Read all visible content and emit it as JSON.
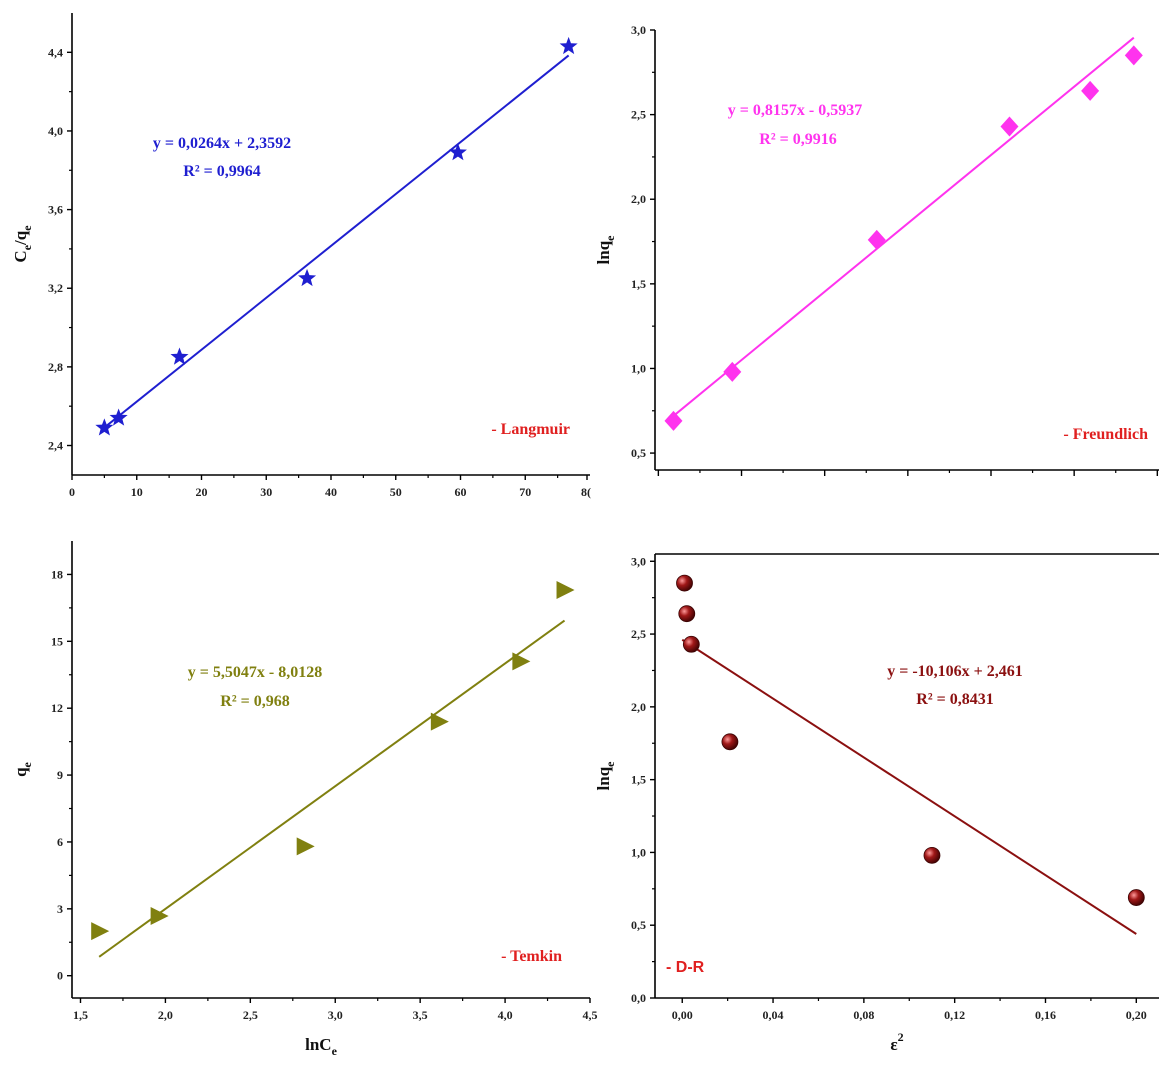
{
  "chart_data": [
    {
      "type": "scatter",
      "panel": "langmuir",
      "title": "",
      "xlabel": "",
      "ylabel_main": "C",
      "ylabel_sub1": "e",
      "ylabel_mid": "/q",
      "ylabel_sub2": "e",
      "xlim": [
        0,
        80
      ],
      "ylim": [
        2.25,
        4.6
      ],
      "x_ticks": [
        0,
        10,
        20,
        30,
        40,
        50,
        60,
        70
      ],
      "x_tick_labels": [
        "0",
        "10",
        "20",
        "30",
        "40",
        "50",
        "60",
        "70"
      ],
      "x_tick_last_label": "8(",
      "y_ticks": [
        2.4,
        2.8,
        3.2,
        3.6,
        4.0,
        4.4
      ],
      "y_tick_labels": [
        "2,4",
        "2,8",
        "3,2",
        "3,6",
        "4,0",
        "4,4"
      ],
      "color": "#1f1fd0",
      "marker": "star",
      "points": [
        [
          5.0,
          2.49
        ],
        [
          7.2,
          2.54
        ],
        [
          16.6,
          2.85
        ],
        [
          36.3,
          3.25
        ],
        [
          59.6,
          3.89
        ],
        [
          76.7,
          4.43
        ]
      ],
      "fit": {
        "slope": 0.0264,
        "intercept": 2.3592,
        "x_range": [
          5.0,
          76.7
        ]
      },
      "equation": "y = 0,0264x + 2,3592",
      "r_squared": "R² = 0,9964",
      "legend_text": "- Langmuir",
      "legend_color": "#e02020"
    },
    {
      "type": "scatter",
      "panel": "freundlich",
      "title": "",
      "xlabel": "",
      "ylabel_main": "lnq",
      "ylabel_sub": "e",
      "xlim": [
        1.5,
        4.5
      ],
      "ylim": [
        0.4,
        3.0
      ],
      "x_tick_count": 7,
      "y_ticks": [
        0.5,
        1.0,
        1.5,
        2.0,
        2.5,
        3.0
      ],
      "y_tick_labels": [
        "0,5",
        "1,0",
        "1,5",
        "2,0",
        "2,5",
        "3,0"
      ],
      "color": "#ff33ee",
      "marker": "diamond",
      "points": [
        [
          1.61,
          0.69
        ],
        [
          1.96,
          0.98
        ],
        [
          2.82,
          1.76
        ],
        [
          3.61,
          2.43
        ],
        [
          4.09,
          2.64
        ],
        [
          4.35,
          2.85
        ]
      ],
      "fit": {
        "slope": 0.8157,
        "intercept": -0.5937,
        "x_range": [
          1.61,
          4.35
        ]
      },
      "equation": "y = 0,8157x - 0,5937",
      "r_squared": "R² = 0,9916",
      "legend_text": "- Freundlich",
      "legend_color": "#e02020"
    },
    {
      "type": "scatter",
      "panel": "temkin",
      "title": "",
      "xlabel_main": "lnC",
      "xlabel_sub": "e",
      "ylabel_main": "q",
      "ylabel_sub": "e",
      "xlim": [
        1.45,
        4.5
      ],
      "ylim": [
        -1.0,
        19.5
      ],
      "x_ticks": [
        1.5,
        2.0,
        2.5,
        3.0,
        3.5,
        4.0,
        4.5
      ],
      "x_tick_labels": [
        "1,5",
        "2,0",
        "2,5",
        "3,0",
        "3,5",
        "4,0",
        "4,5"
      ],
      "y_ticks": [
        0,
        3,
        6,
        9,
        12,
        15,
        18
      ],
      "y_tick_labels": [
        "0",
        "3",
        "6",
        "9",
        "12",
        "15",
        "18"
      ],
      "color": "#808010",
      "marker": "triangle-right",
      "points": [
        [
          1.61,
          2.0
        ],
        [
          1.96,
          2.68
        ],
        [
          2.82,
          5.8
        ],
        [
          3.61,
          11.4
        ],
        [
          4.09,
          14.1
        ],
        [
          4.35,
          17.3
        ]
      ],
      "fit": {
        "slope": 5.5047,
        "intercept": -8.0128,
        "x_range": [
          1.61,
          4.35
        ]
      },
      "equation": "y = 5,5047x - 8,0128",
      "r_squared": "R² = 0,968",
      "legend_text": "- Temkin",
      "legend_color": "#e02020"
    },
    {
      "type": "scatter",
      "panel": "dr",
      "title": "",
      "xlabel_main": "ε",
      "xlabel_sup": "2",
      "ylabel_main": "lnq",
      "ylabel_sub": "e",
      "xlim": [
        -0.012,
        0.21
      ],
      "ylim": [
        0.0,
        3.05
      ],
      "x_ticks": [
        0.0,
        0.04,
        0.08,
        0.12,
        0.16,
        0.2
      ],
      "x_tick_labels": [
        "0,00",
        "0,04",
        "0,08",
        "0,12",
        "0,16",
        "0,20"
      ],
      "y_ticks": [
        0.0,
        0.5,
        1.0,
        1.5,
        2.0,
        2.5,
        3.0
      ],
      "y_tick_labels": [
        "0,0",
        "0,5",
        "1,0",
        "1,5",
        "2,0",
        "2,5",
        "3,0"
      ],
      "color": "#8b1010",
      "marker": "sphere",
      "points": [
        [
          0.001,
          2.85
        ],
        [
          0.002,
          2.64
        ],
        [
          0.004,
          2.43
        ],
        [
          0.021,
          1.76
        ],
        [
          0.11,
          0.98
        ],
        [
          0.2,
          0.69
        ]
      ],
      "fit": {
        "slope": -10.106,
        "intercept": 2.461,
        "x_range": [
          0.0,
          0.2
        ]
      },
      "equation": "y = -10,106x + 2,461",
      "r_squared": "R² = 0,8431",
      "legend_text": "- D-R",
      "legend_color": "#e02020"
    }
  ]
}
